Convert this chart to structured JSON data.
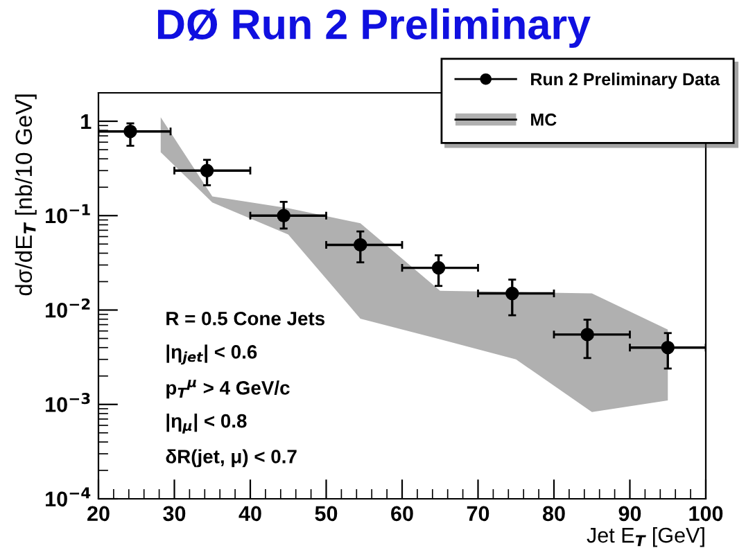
{
  "chart_data": {
    "type": "scatter",
    "title": "DØ Run 2 Preliminary",
    "xlabel": "Jet E$_{T}$ [GeV]",
    "ylabel": "dσ/dE$_{T}$ [nb/10 GeV]",
    "log": "y",
    "xlim": [
      20,
      100
    ],
    "ylim": [
      0.0001,
      2
    ],
    "xticks": [
      20,
      30,
      40,
      50,
      60,
      70,
      80,
      90,
      100
    ],
    "yticks": [
      {
        "value": 0.0001,
        "label": "10$^{−4}$"
      },
      {
        "value": 0.001,
        "label": "10$^{−3}$"
      },
      {
        "value": 0.01,
        "label": "10$^{−2}$"
      },
      {
        "value": 0.1,
        "label": "10$^{−1}$"
      },
      {
        "value": 1,
        "label": "1"
      }
    ],
    "grid": false,
    "legend": "top right",
    "series": [
      {
        "name": "MC",
        "type": "area",
        "color": "#b0b0b0",
        "x": [
          28.2,
          35,
          45,
          54.5,
          65,
          75,
          85,
          95
        ],
        "values": [
          null,
          null,
          null,
          null,
          null,
          null,
          null,
          null
        ],
        "lower": [
          0.47,
          0.138,
          0.063,
          0.0081,
          0.0049,
          0.003,
          0.00083,
          0.0011
        ],
        "upper": [
          1.1,
          0.16,
          0.12,
          0.083,
          0.016,
          0.0155,
          0.015,
          0.0062
        ]
      },
      {
        "name": "Run 2 Preliminary Data",
        "color": "#000000",
        "marker": "circle",
        "x": [
          24.2,
          34.3,
          44.4,
          54.5,
          64.8,
          74.5,
          84.4,
          95.0
        ],
        "values": [
          0.78,
          0.3,
          0.1,
          0.049,
          0.028,
          0.015,
          0.0055,
          0.004
        ],
        "errors": [
          [
            0.55,
            0.95
          ],
          [
            0.21,
            0.39
          ],
          [
            0.073,
            0.14
          ],
          [
            0.032,
            0.068
          ],
          [
            0.018,
            0.038
          ],
          [
            0.0088,
            0.021
          ],
          [
            0.0031,
            0.0079
          ],
          [
            0.0024,
            0.0057
          ]
        ],
        "xerrors": [
          [
            20,
            29.5
          ],
          [
            30,
            40
          ],
          [
            40,
            50
          ],
          [
            50,
            60
          ],
          [
            60,
            70
          ],
          [
            70,
            80
          ],
          [
            80,
            90
          ],
          [
            90,
            100
          ]
        ]
      }
    ],
    "annotations": [
      "R = 0.5 Cone Jets",
      "|η$_{jet}$| < 0.6",
      "p$_{T}$$^{μ}$ > 4 GeV/c",
      "|η$_{μ}$| < 0.8",
      "δR(jet, μ) < 0.7"
    ]
  }
}
